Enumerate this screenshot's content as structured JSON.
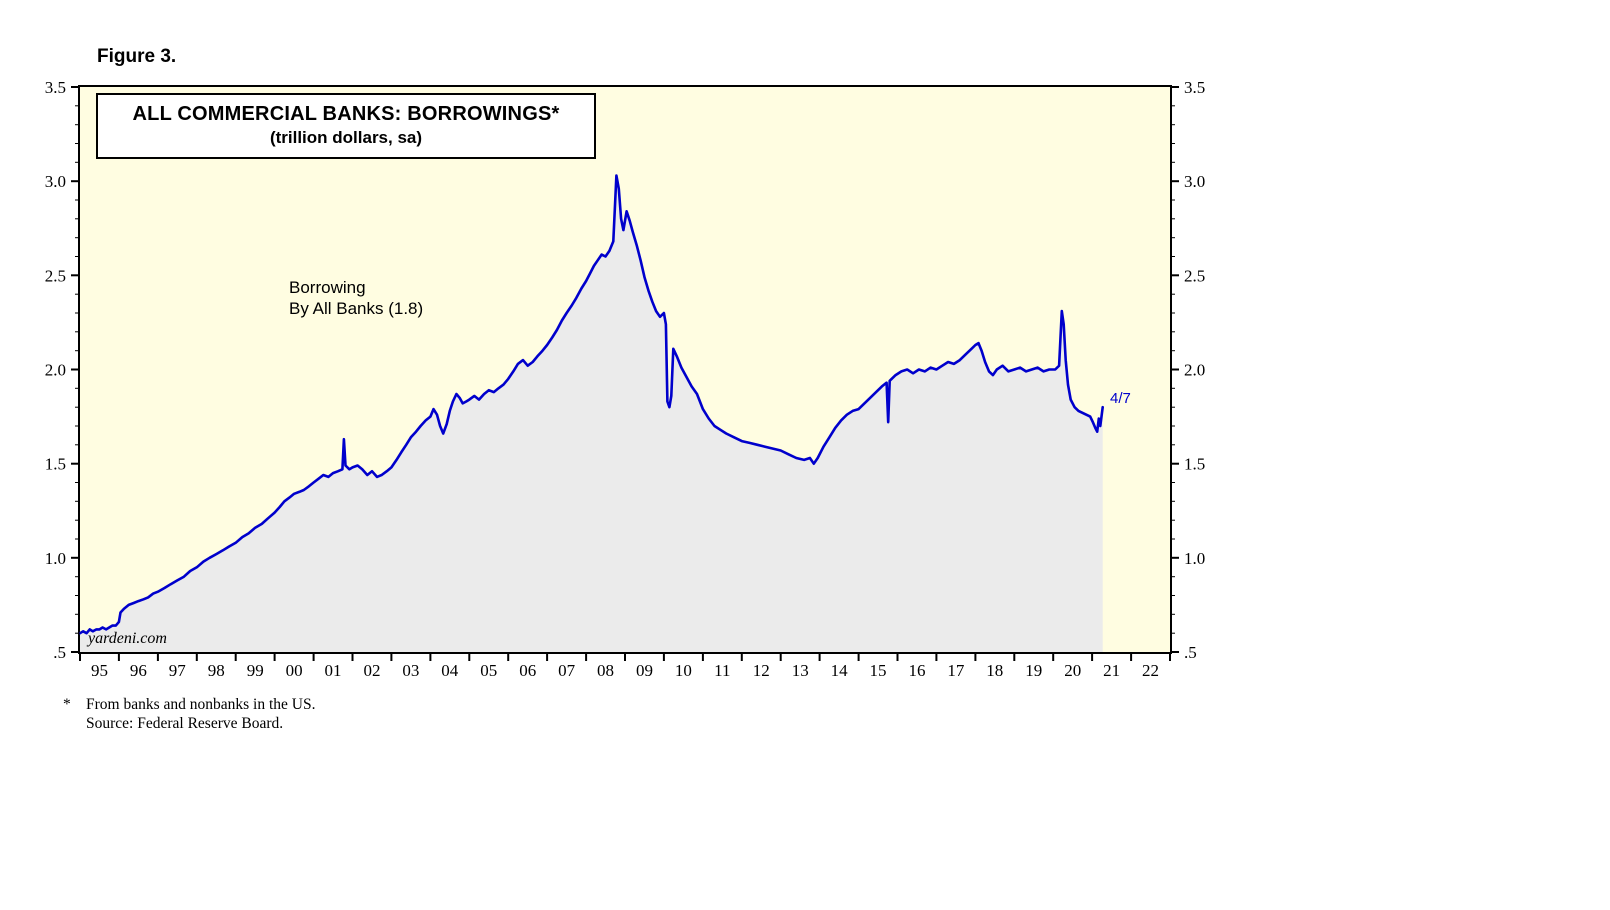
{
  "figure_label": "Figure 3.",
  "title_box": {
    "title": "ALL COMMERCIAL BANKS: BORROWINGS*",
    "subtitle": "(trillion dollars, sa)"
  },
  "annotation": {
    "line1": "Borrowing",
    "line2": "By All Banks (1.8)"
  },
  "watermark": "yardeni.com",
  "end_label": "4/7",
  "footnotes": {
    "asterisk": "*",
    "note": "From banks and nonbanks in the US.",
    "source": "Source: Federal Reserve Board."
  },
  "chart_data": {
    "type": "line",
    "title": "ALL COMMERCIAL BANKS: BORROWINGS*",
    "subtitle": "(trillion dollars, sa)",
    "series_name": "Borrowing By All Banks",
    "last_value": 1.8,
    "last_date_label": "4/7",
    "x_range": [
      1995,
      2023
    ],
    "y_range": [
      0.5,
      3.5
    ],
    "y_minor_step": 0.1,
    "grid": false,
    "legend_position": "none",
    "plot_bg": "#fffde1",
    "line_color": "#0000cc",
    "area_fill": "#ebebeb",
    "axis_color": "#000000",
    "x_start_year": 1995,
    "x_labels": [
      "95",
      "96",
      "97",
      "98",
      "99",
      "00",
      "01",
      "02",
      "03",
      "04",
      "05",
      "06",
      "07",
      "08",
      "09",
      "10",
      "11",
      "12",
      "13",
      "14",
      "15",
      "16",
      "17",
      "18",
      "19",
      "20",
      "21",
      "22"
    ],
    "y_ticks": [
      {
        "value": 0.5,
        "label": ".5"
      },
      {
        "value": 1.0,
        "label": "1.0"
      },
      {
        "value": 1.5,
        "label": "1.5"
      },
      {
        "value": 2.0,
        "label": "2.0"
      },
      {
        "value": 2.5,
        "label": "2.5"
      },
      {
        "value": 3.0,
        "label": "3.0"
      },
      {
        "value": 3.5,
        "label": "3.5"
      }
    ],
    "points": [
      [
        1995.0,
        0.6
      ],
      [
        1995.08,
        0.61
      ],
      [
        1995.17,
        0.6
      ],
      [
        1995.25,
        0.62
      ],
      [
        1995.33,
        0.61
      ],
      [
        1995.42,
        0.62
      ],
      [
        1995.5,
        0.62
      ],
      [
        1995.58,
        0.63
      ],
      [
        1995.67,
        0.62
      ],
      [
        1995.75,
        0.63
      ],
      [
        1995.83,
        0.64
      ],
      [
        1995.92,
        0.64
      ],
      [
        1996.0,
        0.66
      ],
      [
        1996.04,
        0.71
      ],
      [
        1996.13,
        0.73
      ],
      [
        1996.25,
        0.75
      ],
      [
        1996.38,
        0.76
      ],
      [
        1996.5,
        0.77
      ],
      [
        1996.63,
        0.78
      ],
      [
        1996.75,
        0.79
      ],
      [
        1996.88,
        0.81
      ],
      [
        1997.0,
        0.82
      ],
      [
        1997.17,
        0.84
      ],
      [
        1997.33,
        0.86
      ],
      [
        1997.5,
        0.88
      ],
      [
        1997.67,
        0.9
      ],
      [
        1997.83,
        0.93
      ],
      [
        1998.0,
        0.95
      ],
      [
        1998.17,
        0.98
      ],
      [
        1998.33,
        1.0
      ],
      [
        1998.5,
        1.02
      ],
      [
        1998.67,
        1.04
      ],
      [
        1998.83,
        1.06
      ],
      [
        1999.0,
        1.08
      ],
      [
        1999.17,
        1.11
      ],
      [
        1999.33,
        1.13
      ],
      [
        1999.5,
        1.16
      ],
      [
        1999.67,
        1.18
      ],
      [
        1999.83,
        1.21
      ],
      [
        2000.0,
        1.24
      ],
      [
        2000.13,
        1.27
      ],
      [
        2000.25,
        1.3
      ],
      [
        2000.38,
        1.32
      ],
      [
        2000.5,
        1.34
      ],
      [
        2000.63,
        1.35
      ],
      [
        2000.75,
        1.36
      ],
      [
        2000.88,
        1.38
      ],
      [
        2001.0,
        1.4
      ],
      [
        2001.13,
        1.42
      ],
      [
        2001.25,
        1.44
      ],
      [
        2001.38,
        1.43
      ],
      [
        2001.5,
        1.45
      ],
      [
        2001.63,
        1.46
      ],
      [
        2001.74,
        1.47
      ],
      [
        2001.78,
        1.63
      ],
      [
        2001.82,
        1.49
      ],
      [
        2001.92,
        1.47
      ],
      [
        2002.0,
        1.48
      ],
      [
        2002.13,
        1.49
      ],
      [
        2002.25,
        1.47
      ],
      [
        2002.38,
        1.44
      ],
      [
        2002.5,
        1.46
      ],
      [
        2002.63,
        1.43
      ],
      [
        2002.75,
        1.44
      ],
      [
        2002.88,
        1.46
      ],
      [
        2003.0,
        1.48
      ],
      [
        2003.13,
        1.52
      ],
      [
        2003.25,
        1.56
      ],
      [
        2003.38,
        1.6
      ],
      [
        2003.5,
        1.64
      ],
      [
        2003.63,
        1.67
      ],
      [
        2003.75,
        1.7
      ],
      [
        2003.88,
        1.73
      ],
      [
        2004.0,
        1.75
      ],
      [
        2004.08,
        1.79
      ],
      [
        2004.17,
        1.76
      ],
      [
        2004.25,
        1.7
      ],
      [
        2004.33,
        1.66
      ],
      [
        2004.42,
        1.71
      ],
      [
        2004.5,
        1.78
      ],
      [
        2004.58,
        1.83
      ],
      [
        2004.67,
        1.87
      ],
      [
        2004.75,
        1.85
      ],
      [
        2004.83,
        1.82
      ],
      [
        2004.92,
        1.83
      ],
      [
        2005.0,
        1.84
      ],
      [
        2005.13,
        1.86
      ],
      [
        2005.25,
        1.84
      ],
      [
        2005.38,
        1.87
      ],
      [
        2005.5,
        1.89
      ],
      [
        2005.63,
        1.88
      ],
      [
        2005.75,
        1.9
      ],
      [
        2005.88,
        1.92
      ],
      [
        2006.0,
        1.95
      ],
      [
        2006.13,
        1.99
      ],
      [
        2006.25,
        2.03
      ],
      [
        2006.38,
        2.05
      ],
      [
        2006.5,
        2.02
      ],
      [
        2006.63,
        2.04
      ],
      [
        2006.75,
        2.07
      ],
      [
        2006.88,
        2.1
      ],
      [
        2007.0,
        2.13
      ],
      [
        2007.13,
        2.17
      ],
      [
        2007.25,
        2.21
      ],
      [
        2007.38,
        2.26
      ],
      [
        2007.5,
        2.3
      ],
      [
        2007.63,
        2.34
      ],
      [
        2007.75,
        2.38
      ],
      [
        2007.88,
        2.43
      ],
      [
        2008.0,
        2.47
      ],
      [
        2008.1,
        2.51
      ],
      [
        2008.2,
        2.55
      ],
      [
        2008.3,
        2.58
      ],
      [
        2008.4,
        2.61
      ],
      [
        2008.5,
        2.6
      ],
      [
        2008.6,
        2.63
      ],
      [
        2008.7,
        2.68
      ],
      [
        2008.78,
        3.03
      ],
      [
        2008.84,
        2.96
      ],
      [
        2008.9,
        2.8
      ],
      [
        2008.96,
        2.74
      ],
      [
        2009.04,
        2.84
      ],
      [
        2009.12,
        2.79
      ],
      [
        2009.2,
        2.73
      ],
      [
        2009.3,
        2.66
      ],
      [
        2009.4,
        2.58
      ],
      [
        2009.5,
        2.49
      ],
      [
        2009.6,
        2.42
      ],
      [
        2009.7,
        2.36
      ],
      [
        2009.8,
        2.31
      ],
      [
        2009.9,
        2.28
      ],
      [
        2010.0,
        2.3
      ],
      [
        2010.05,
        2.24
      ],
      [
        2010.09,
        1.83
      ],
      [
        2010.14,
        1.8
      ],
      [
        2010.19,
        1.86
      ],
      [
        2010.24,
        2.11
      ],
      [
        2010.33,
        2.07
      ],
      [
        2010.45,
        2.01
      ],
      [
        2010.58,
        1.96
      ],
      [
        2010.71,
        1.91
      ],
      [
        2010.85,
        1.87
      ],
      [
        2011.0,
        1.79
      ],
      [
        2011.15,
        1.74
      ],
      [
        2011.3,
        1.7
      ],
      [
        2011.45,
        1.68
      ],
      [
        2011.6,
        1.66
      ],
      [
        2011.8,
        1.64
      ],
      [
        2012.0,
        1.62
      ],
      [
        2012.2,
        1.61
      ],
      [
        2012.4,
        1.6
      ],
      [
        2012.6,
        1.59
      ],
      [
        2012.8,
        1.58
      ],
      [
        2013.0,
        1.57
      ],
      [
        2013.2,
        1.55
      ],
      [
        2013.4,
        1.53
      ],
      [
        2013.6,
        1.52
      ],
      [
        2013.75,
        1.53
      ],
      [
        2013.85,
        1.5
      ],
      [
        2013.95,
        1.53
      ],
      [
        2014.1,
        1.59
      ],
      [
        2014.25,
        1.64
      ],
      [
        2014.4,
        1.69
      ],
      [
        2014.55,
        1.73
      ],
      [
        2014.7,
        1.76
      ],
      [
        2014.85,
        1.78
      ],
      [
        2015.0,
        1.79
      ],
      [
        2015.15,
        1.82
      ],
      [
        2015.3,
        1.85
      ],
      [
        2015.45,
        1.88
      ],
      [
        2015.6,
        1.91
      ],
      [
        2015.72,
        1.93
      ],
      [
        2015.76,
        1.72
      ],
      [
        2015.8,
        1.94
      ],
      [
        2015.95,
        1.97
      ],
      [
        2016.1,
        1.99
      ],
      [
        2016.25,
        2.0
      ],
      [
        2016.4,
        1.98
      ],
      [
        2016.55,
        2.0
      ],
      [
        2016.7,
        1.99
      ],
      [
        2016.85,
        2.01
      ],
      [
        2017.0,
        2.0
      ],
      [
        2017.15,
        2.02
      ],
      [
        2017.3,
        2.04
      ],
      [
        2017.45,
        2.03
      ],
      [
        2017.6,
        2.05
      ],
      [
        2017.75,
        2.08
      ],
      [
        2017.9,
        2.11
      ],
      [
        2018.0,
        2.13
      ],
      [
        2018.08,
        2.14
      ],
      [
        2018.16,
        2.1
      ],
      [
        2018.25,
        2.04
      ],
      [
        2018.35,
        1.99
      ],
      [
        2018.45,
        1.97
      ],
      [
        2018.55,
        2.0
      ],
      [
        2018.7,
        2.02
      ],
      [
        2018.85,
        1.99
      ],
      [
        2019.0,
        2.0
      ],
      [
        2019.15,
        2.01
      ],
      [
        2019.3,
        1.99
      ],
      [
        2019.45,
        2.0
      ],
      [
        2019.6,
        2.01
      ],
      [
        2019.75,
        1.99
      ],
      [
        2019.9,
        2.0
      ],
      [
        2020.05,
        2.0
      ],
      [
        2020.15,
        2.02
      ],
      [
        2020.22,
        2.31
      ],
      [
        2020.27,
        2.24
      ],
      [
        2020.32,
        2.05
      ],
      [
        2020.38,
        1.92
      ],
      [
        2020.45,
        1.84
      ],
      [
        2020.55,
        1.8
      ],
      [
        2020.65,
        1.78
      ],
      [
        2020.75,
        1.77
      ],
      [
        2020.85,
        1.76
      ],
      [
        2020.95,
        1.75
      ],
      [
        2021.02,
        1.72
      ],
      [
        2021.08,
        1.69
      ],
      [
        2021.13,
        1.67
      ],
      [
        2021.17,
        1.74
      ],
      [
        2021.21,
        1.7
      ],
      [
        2021.27,
        1.8
      ]
    ]
  }
}
